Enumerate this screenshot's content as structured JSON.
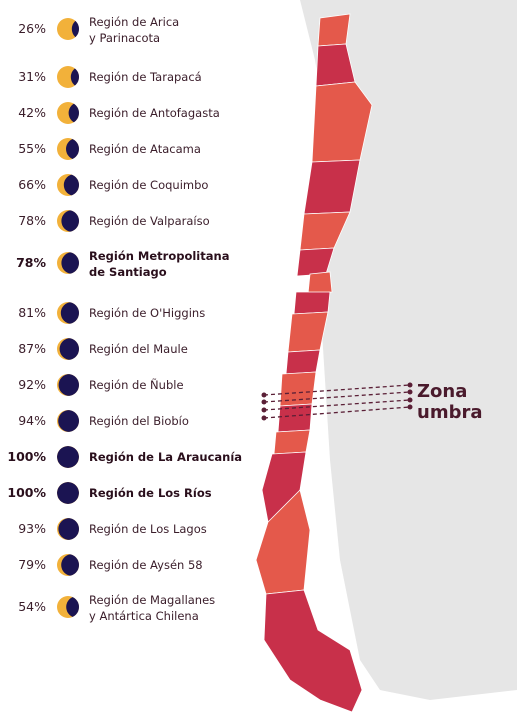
{
  "colors": {
    "moon_dark": "#1b1452",
    "sun_light": "#f2b13a",
    "region_dark": "#c8304a",
    "region_light": "#e4594b",
    "land_gray": "#e6e6e6",
    "label_dark": "#4a1a2c"
  },
  "regions": [
    {
      "pct": "26%",
      "name_line1": "Región de Arica",
      "name_line2": "y Parinacota",
      "coverage": 0.26,
      "bold": false
    },
    {
      "pct": "31%",
      "name_line1": "Región de Tarapacá",
      "name_line2": "",
      "coverage": 0.31,
      "bold": false
    },
    {
      "pct": "42%",
      "name_line1": "Región de Antofagasta",
      "name_line2": "",
      "coverage": 0.42,
      "bold": false
    },
    {
      "pct": "55%",
      "name_line1": "Región de Atacama",
      "name_line2": "",
      "coverage": 0.55,
      "bold": false
    },
    {
      "pct": "66%",
      "name_line1": "Región de Coquimbo",
      "name_line2": "",
      "coverage": 0.66,
      "bold": false
    },
    {
      "pct": "78%",
      "name_line1": "Región de Valparaíso",
      "name_line2": "",
      "coverage": 0.78,
      "bold": false
    },
    {
      "pct": "78%",
      "name_line1": "Región Metropolitana",
      "name_line2": "de Santiago",
      "coverage": 0.78,
      "bold": true
    },
    {
      "pct": "81%",
      "name_line1": "Región de O'Higgins",
      "name_line2": "",
      "coverage": 0.81,
      "bold": false
    },
    {
      "pct": "87%",
      "name_line1": "Región del Maule",
      "name_line2": "",
      "coverage": 0.87,
      "bold": false
    },
    {
      "pct": "92%",
      "name_line1": "Región de Ñuble",
      "name_line2": "",
      "coverage": 0.92,
      "bold": false
    },
    {
      "pct": "94%",
      "name_line1": "Región del Biobío",
      "name_line2": "",
      "coverage": 0.94,
      "bold": false
    },
    {
      "pct": "100%",
      "name_line1": "Región de La Araucanía",
      "name_line2": "",
      "coverage": 1.0,
      "bold": true
    },
    {
      "pct": "100%",
      "name_line1": "Región de Los Ríos",
      "name_line2": "",
      "coverage": 1.0,
      "bold": true
    },
    {
      "pct": "93%",
      "name_line1": "Región de Los Lagos",
      "name_line2": "",
      "coverage": 0.93,
      "bold": false
    },
    {
      "pct": "79%",
      "name_line1": "Región de Aysén 58",
      "name_line2": "",
      "coverage": 0.79,
      "bold": false
    },
    {
      "pct": "54%",
      "name_line1": "Región de Magallanes",
      "name_line2": "y Antártica Chilena",
      "coverage": 0.54,
      "bold": false
    }
  ],
  "map": {
    "zona_line1": "Zona",
    "zona_line2": "umbra"
  }
}
